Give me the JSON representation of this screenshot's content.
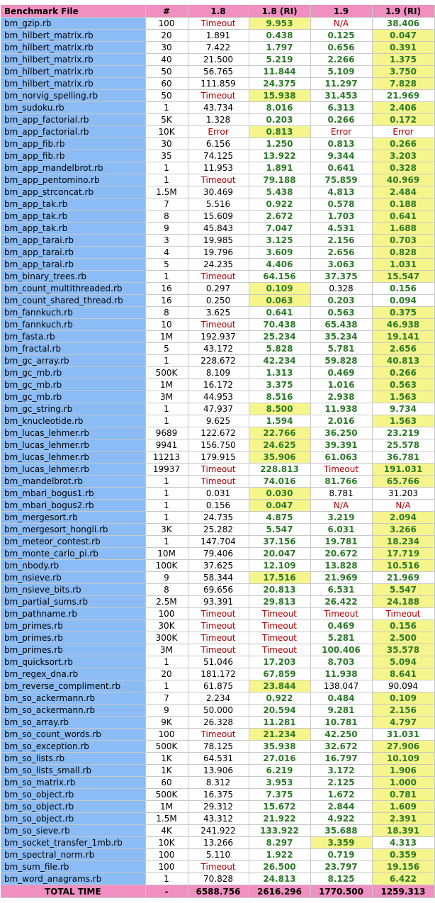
{
  "colors": {
    "header": "#f08fc0",
    "name_column": "#8cbcf5",
    "highlight": "#f5f58c",
    "timeout_red": "#b00000",
    "fast_green": "#2b7a26"
  },
  "headers": [
    "Benchmark File",
    "#",
    "1.8",
    "1.8 (RI)",
    "1.9",
    "1.9 (RI)"
  ],
  "rows": [
    {
      "name": "bm_gzip.rb",
      "iter": "100",
      "v18": "Timeout",
      "v18ri": "9.953",
      "v19": "N/A",
      "v19ri": "38.406",
      "hl": [
        1
      ],
      "style": [
        "r",
        "g",
        "r",
        "g"
      ]
    },
    {
      "name": "bm_hilbert_matrix.rb",
      "iter": "20",
      "v18": "1.891",
      "v18ri": "0.438",
      "v19": "0.125",
      "v19ri": "0.047",
      "hl": [
        3
      ],
      "style": [
        "n",
        "g",
        "g",
        "g"
      ]
    },
    {
      "name": "bm_hilbert_matrix.rb",
      "iter": "30",
      "v18": "7.422",
      "v18ri": "1.797",
      "v19": "0.656",
      "v19ri": "0.391",
      "hl": [
        3
      ],
      "style": [
        "n",
        "g",
        "g",
        "g"
      ]
    },
    {
      "name": "bm_hilbert_matrix.rb",
      "iter": "40",
      "v18": "21.500",
      "v18ri": "5.219",
      "v19": "2.266",
      "v19ri": "1.375",
      "hl": [
        3
      ],
      "style": [
        "n",
        "g",
        "g",
        "g"
      ]
    },
    {
      "name": "bm_hilbert_matrix.rb",
      "iter": "50",
      "v18": "56.765",
      "v18ri": "11.844",
      "v19": "5.109",
      "v19ri": "3.750",
      "hl": [
        3
      ],
      "style": [
        "n",
        "g",
        "g",
        "g"
      ]
    },
    {
      "name": "bm_hilbert_matrix.rb",
      "iter": "60",
      "v18": "111.859",
      "v18ri": "24.375",
      "v19": "11.297",
      "v19ri": "7.828",
      "hl": [
        3
      ],
      "style": [
        "n",
        "g",
        "g",
        "g"
      ]
    },
    {
      "name": "bm_norvig_spelling.rb",
      "iter": "50",
      "v18": "Timeout",
      "v18ri": "15.938",
      "v19": "31.453",
      "v19ri": "21.969",
      "hl": [
        1
      ],
      "style": [
        "r",
        "g",
        "g",
        "g"
      ]
    },
    {
      "name": "bm_sudoku.rb",
      "iter": "1",
      "v18": "43.734",
      "v18ri": "8.016",
      "v19": "6.313",
      "v19ri": "2.406",
      "hl": [
        3
      ],
      "style": [
        "n",
        "g",
        "g",
        "g"
      ]
    },
    {
      "name": "bm_app_factorial.rb",
      "iter": "5K",
      "v18": "1.328",
      "v18ri": "0.203",
      "v19": "0.266",
      "v19ri": "0.172",
      "hl": [
        3
      ],
      "style": [
        "n",
        "g",
        "g",
        "g"
      ]
    },
    {
      "name": "bm_app_factorial.rb",
      "iter": "10K",
      "v18": "Error",
      "v18ri": "0.813",
      "v19": "Error",
      "v19ri": "Error",
      "hl": [
        1
      ],
      "style": [
        "r",
        "g",
        "r",
        "r"
      ]
    },
    {
      "name": "bm_app_fib.rb",
      "iter": "30",
      "v18": "6.156",
      "v18ri": "1.250",
      "v19": "0.813",
      "v19ri": "0.266",
      "hl": [
        3
      ],
      "style": [
        "n",
        "g",
        "g",
        "g"
      ]
    },
    {
      "name": "bm_app_fib.rb",
      "iter": "35",
      "v18": "74.125",
      "v18ri": "13.922",
      "v19": "9.344",
      "v19ri": "3.203",
      "hl": [
        3
      ],
      "style": [
        "n",
        "g",
        "g",
        "g"
      ]
    },
    {
      "name": "bm_app_mandelbrot.rb",
      "iter": "1",
      "v18": "11.953",
      "v18ri": "1.891",
      "v19": "0.641",
      "v19ri": "0.328",
      "hl": [
        3
      ],
      "style": [
        "n",
        "g",
        "g",
        "g"
      ]
    },
    {
      "name": "bm_app_pentomino.rb",
      "iter": "1",
      "v18": "Timeout",
      "v18ri": "79.188",
      "v19": "75.859",
      "v19ri": "40.969",
      "hl": [
        3
      ],
      "style": [
        "r",
        "g",
        "g",
        "g"
      ]
    },
    {
      "name": "bm_app_strconcat.rb",
      "iter": "1.5M",
      "v18": "30.469",
      "v18ri": "5.438",
      "v19": "4.813",
      "v19ri": "2.484",
      "hl": [
        3
      ],
      "style": [
        "n",
        "g",
        "g",
        "g"
      ]
    },
    {
      "name": "bm_app_tak.rb",
      "iter": "7",
      "v18": "5.516",
      "v18ri": "0.922",
      "v19": "0.578",
      "v19ri": "0.188",
      "hl": [
        3
      ],
      "style": [
        "n",
        "g",
        "g",
        "g"
      ]
    },
    {
      "name": "bm_app_tak.rb",
      "iter": "8",
      "v18": "15.609",
      "v18ri": "2.672",
      "v19": "1.703",
      "v19ri": "0.641",
      "hl": [
        3
      ],
      "style": [
        "n",
        "g",
        "g",
        "g"
      ]
    },
    {
      "name": "bm_app_tak.rb",
      "iter": "9",
      "v18": "45.843",
      "v18ri": "7.047",
      "v19": "4.531",
      "v19ri": "1.688",
      "hl": [
        3
      ],
      "style": [
        "n",
        "g",
        "g",
        "g"
      ]
    },
    {
      "name": "bm_app_tarai.rb",
      "iter": "3",
      "v18": "19.985",
      "v18ri": "3.125",
      "v19": "2.156",
      "v19ri": "0.703",
      "hl": [
        3
      ],
      "style": [
        "n",
        "g",
        "g",
        "g"
      ]
    },
    {
      "name": "bm_app_tarai.rb",
      "iter": "4",
      "v18": "19.796",
      "v18ri": "3.609",
      "v19": "2.656",
      "v19ri": "0.828",
      "hl": [
        3
      ],
      "style": [
        "n",
        "g",
        "g",
        "g"
      ]
    },
    {
      "name": "bm_app_tarai.rb",
      "iter": "5",
      "v18": "24.235",
      "v18ri": "4.406",
      "v19": "3.063",
      "v19ri": "1.031",
      "hl": [
        3
      ],
      "style": [
        "n",
        "g",
        "g",
        "g"
      ]
    },
    {
      "name": "bm_binary_trees.rb",
      "iter": "1",
      "v18": "Timeout",
      "v18ri": "64.156",
      "v19": "37.375",
      "v19ri": "15.547",
      "hl": [
        3
      ],
      "style": [
        "r",
        "g",
        "g",
        "g"
      ]
    },
    {
      "name": "bm_count_multithreaded.rb",
      "iter": "16",
      "v18": "0.297",
      "v18ri": "0.109",
      "v19": "0.328",
      "v19ri": "0.156",
      "hl": [
        1
      ],
      "style": [
        "n",
        "g",
        "n",
        "g"
      ]
    },
    {
      "name": "bm_count_shared_thread.rb",
      "iter": "16",
      "v18": "0.250",
      "v18ri": "0.063",
      "v19": "0.203",
      "v19ri": "0.094",
      "hl": [
        1
      ],
      "style": [
        "n",
        "g",
        "g",
        "g"
      ]
    },
    {
      "name": "bm_fannkuch.rb",
      "iter": "8",
      "v18": "3.625",
      "v18ri": "0.641",
      "v19": "0.563",
      "v19ri": "0.375",
      "hl": [
        3
      ],
      "style": [
        "n",
        "g",
        "g",
        "g"
      ]
    },
    {
      "name": "bm_fannkuch.rb",
      "iter": "10",
      "v18": "Timeout",
      "v18ri": "70.438",
      "v19": "65.438",
      "v19ri": "46.938",
      "hl": [
        3
      ],
      "style": [
        "r",
        "g",
        "g",
        "g"
      ]
    },
    {
      "name": "bm_fasta.rb",
      "iter": "1M",
      "v18": "192.937",
      "v18ri": "25.234",
      "v19": "35.234",
      "v19ri": "19.141",
      "hl": [
        3
      ],
      "style": [
        "n",
        "g",
        "g",
        "g"
      ]
    },
    {
      "name": "bm_fractal.rb",
      "iter": "5",
      "v18": "43.172",
      "v18ri": "5.828",
      "v19": "5.781",
      "v19ri": "2.656",
      "hl": [
        3
      ],
      "style": [
        "n",
        "g",
        "g",
        "g"
      ]
    },
    {
      "name": "bm_gc_array.rb",
      "iter": "1",
      "v18": "228.672",
      "v18ri": "42.234",
      "v19": "59.828",
      "v19ri": "40.813",
      "hl": [
        3
      ],
      "style": [
        "n",
        "g",
        "g",
        "g"
      ]
    },
    {
      "name": "bm_gc_mb.rb",
      "iter": "500K",
      "v18": "8.109",
      "v18ri": "1.313",
      "v19": "0.469",
      "v19ri": "0.266",
      "hl": [
        3
      ],
      "style": [
        "n",
        "g",
        "g",
        "g"
      ]
    },
    {
      "name": "bm_gc_mb.rb",
      "iter": "1M",
      "v18": "16.172",
      "v18ri": "3.375",
      "v19": "1.016",
      "v19ri": "0.563",
      "hl": [
        3
      ],
      "style": [
        "n",
        "g",
        "g",
        "g"
      ]
    },
    {
      "name": "bm_gc_mb.rb",
      "iter": "3M",
      "v18": "44.953",
      "v18ri": "8.516",
      "v19": "2.938",
      "v19ri": "1.563",
      "hl": [
        3
      ],
      "style": [
        "n",
        "g",
        "g",
        "g"
      ]
    },
    {
      "name": "bm_gc_string.rb",
      "iter": "1",
      "v18": "47.937",
      "v18ri": "8.500",
      "v19": "11.938",
      "v19ri": "9.734",
      "hl": [
        1
      ],
      "style": [
        "n",
        "g",
        "g",
        "g"
      ]
    },
    {
      "name": "bm_knucleotide.rb",
      "iter": "1",
      "v18": "9.625",
      "v18ri": "1.594",
      "v19": "2.016",
      "v19ri": "1.563",
      "hl": [
        3
      ],
      "style": [
        "n",
        "g",
        "g",
        "g"
      ]
    },
    {
      "name": "bm_lucas_lehmer.rb",
      "iter": "9689",
      "v18": "122.672",
      "v18ri": "22.766",
      "v19": "36.250",
      "v19ri": "23.219",
      "hl": [
        1
      ],
      "style": [
        "n",
        "g",
        "g",
        "g"
      ]
    },
    {
      "name": "bm_lucas_lehmer.rb",
      "iter": "9941",
      "v18": "156.750",
      "v18ri": "24.625",
      "v19": "39.391",
      "v19ri": "25.578",
      "hl": [
        1
      ],
      "style": [
        "n",
        "g",
        "g",
        "g"
      ]
    },
    {
      "name": "bm_lucas_lehmer.rb",
      "iter": "11213",
      "v18": "179.915",
      "v18ri": "35.906",
      "v19": "61.063",
      "v19ri": "36.781",
      "hl": [
        1
      ],
      "style": [
        "n",
        "g",
        "g",
        "g"
      ]
    },
    {
      "name": "bm_lucas_lehmer.rb",
      "iter": "19937",
      "v18": "Timeout",
      "v18ri": "228.813",
      "v19": "Timeout",
      "v19ri": "191.031",
      "hl": [
        3
      ],
      "style": [
        "r",
        "g",
        "r",
        "g"
      ]
    },
    {
      "name": "bm_mandelbrot.rb",
      "iter": "1",
      "v18": "Timeout",
      "v18ri": "74.016",
      "v19": "81.766",
      "v19ri": "65.766",
      "hl": [
        3
      ],
      "style": [
        "r",
        "g",
        "g",
        "g"
      ]
    },
    {
      "name": "bm_mbari_bogus1.rb",
      "iter": "1",
      "v18": "0.031",
      "v18ri": "0.030",
      "v19": "8.781",
      "v19ri": "31.203",
      "hl": [
        1
      ],
      "style": [
        "n",
        "g",
        "n",
        "n"
      ]
    },
    {
      "name": "bm_mbari_bogus2.rb",
      "iter": "1",
      "v18": "0.156",
      "v18ri": "0.047",
      "v19": "N/A",
      "v19ri": "N/A",
      "hl": [
        1
      ],
      "style": [
        "n",
        "g",
        "r",
        "r"
      ]
    },
    {
      "name": "bm_mergesort.rb",
      "iter": "1",
      "v18": "24.735",
      "v18ri": "4.875",
      "v19": "3.219",
      "v19ri": "2.094",
      "hl": [
        3
      ],
      "style": [
        "n",
        "g",
        "g",
        "g"
      ]
    },
    {
      "name": "bm_mergesort_hongli.rb",
      "iter": "3K",
      "v18": "25.282",
      "v18ri": "5.547",
      "v19": "6.031",
      "v19ri": "3.266",
      "hl": [
        3
      ],
      "style": [
        "n",
        "g",
        "g",
        "g"
      ]
    },
    {
      "name": "bm_meteor_contest.rb",
      "iter": "1",
      "v18": "147.704",
      "v18ri": "37.156",
      "v19": "19.781",
      "v19ri": "18.234",
      "hl": [
        3
      ],
      "style": [
        "n",
        "g",
        "g",
        "g"
      ]
    },
    {
      "name": "bm_monte_carlo_pi.rb",
      "iter": "10M",
      "v18": "79.406",
      "v18ri": "20.047",
      "v19": "20.672",
      "v19ri": "17.719",
      "hl": [
        3
      ],
      "style": [
        "n",
        "g",
        "g",
        "g"
      ]
    },
    {
      "name": "bm_nbody.rb",
      "iter": "100K",
      "v18": "37.625",
      "v18ri": "12.109",
      "v19": "13.828",
      "v19ri": "10.516",
      "hl": [
        3
      ],
      "style": [
        "n",
        "g",
        "g",
        "g"
      ]
    },
    {
      "name": "bm_nsieve.rb",
      "iter": "9",
      "v18": "58.344",
      "v18ri": "17.516",
      "v19": "21.969",
      "v19ri": "21.969",
      "hl": [
        1
      ],
      "style": [
        "n",
        "g",
        "g",
        "g"
      ]
    },
    {
      "name": "bm_nsieve_bits.rb",
      "iter": "8",
      "v18": "69.656",
      "v18ri": "20.813",
      "v19": "6.531",
      "v19ri": "5.547",
      "hl": [
        3
      ],
      "style": [
        "n",
        "g",
        "g",
        "g"
      ]
    },
    {
      "name": "bm_partial_sums.rb",
      "iter": "2.5M",
      "v18": "93.391",
      "v18ri": "29.813",
      "v19": "26.422",
      "v19ri": "24.188",
      "hl": [
        3
      ],
      "style": [
        "n",
        "g",
        "g",
        "g"
      ]
    },
    {
      "name": "bm_pathname.rb",
      "iter": "100",
      "v18": "Timeout",
      "v18ri": "Timeout",
      "v19": "Timeout",
      "v19ri": "Timeout",
      "hl": [],
      "style": [
        "r",
        "r",
        "r",
        "r"
      ]
    },
    {
      "name": "bm_primes.rb",
      "iter": "30K",
      "v18": "Timeout",
      "v18ri": "Timeout",
      "v19": "0.469",
      "v19ri": "0.156",
      "hl": [
        3
      ],
      "style": [
        "r",
        "r",
        "g",
        "g"
      ]
    },
    {
      "name": "bm_primes.rb",
      "iter": "300K",
      "v18": "Timeout",
      "v18ri": "Timeout",
      "v19": "5.281",
      "v19ri": "2.500",
      "hl": [
        3
      ],
      "style": [
        "r",
        "r",
        "g",
        "g"
      ]
    },
    {
      "name": "bm_primes.rb",
      "iter": "3M",
      "v18": "Timeout",
      "v18ri": "Timeout",
      "v19": "100.406",
      "v19ri": "35.578",
      "hl": [
        3
      ],
      "style": [
        "r",
        "r",
        "g",
        "g"
      ]
    },
    {
      "name": "bm_quicksort.rb",
      "iter": "1",
      "v18": "51.046",
      "v18ri": "17.203",
      "v19": "8.703",
      "v19ri": "5.094",
      "hl": [
        3
      ],
      "style": [
        "n",
        "g",
        "g",
        "g"
      ]
    },
    {
      "name": "bm_regex_dna.rb",
      "iter": "20",
      "v18": "181.172",
      "v18ri": "67.859",
      "v19": "11.938",
      "v19ri": "8.641",
      "hl": [
        3
      ],
      "style": [
        "n",
        "g",
        "g",
        "g"
      ]
    },
    {
      "name": "bm_reverse_compliment.rb",
      "iter": "1",
      "v18": "61.875",
      "v18ri": "23.844",
      "v19": "138.047",
      "v19ri": "90.094",
      "hl": [
        1
      ],
      "style": [
        "n",
        "g",
        "n",
        "n"
      ]
    },
    {
      "name": "bm_so_ackermann.rb",
      "iter": "7",
      "v18": "2.234",
      "v18ri": "0.922",
      "v19": "0.484",
      "v19ri": "0.109",
      "hl": [
        3
      ],
      "style": [
        "n",
        "g",
        "g",
        "g"
      ]
    },
    {
      "name": "bm_so_ackermann.rb",
      "iter": "9",
      "v18": "50.000",
      "v18ri": "20.594",
      "v19": "9.281",
      "v19ri": "2.156",
      "hl": [
        3
      ],
      "style": [
        "n",
        "g",
        "g",
        "g"
      ]
    },
    {
      "name": "bm_so_array.rb",
      "iter": "9K",
      "v18": "26.328",
      "v18ri": "11.281",
      "v19": "10.781",
      "v19ri": "4.797",
      "hl": [
        3
      ],
      "style": [
        "n",
        "g",
        "g",
        "g"
      ]
    },
    {
      "name": "bm_so_count_words.rb",
      "iter": "100",
      "v18": "Timeout",
      "v18ri": "21.234",
      "v19": "42.250",
      "v19ri": "31.031",
      "hl": [
        1
      ],
      "style": [
        "r",
        "g",
        "g",
        "g"
      ]
    },
    {
      "name": "bm_so_exception.rb",
      "iter": "500K",
      "v18": "78.125",
      "v18ri": "35.938",
      "v19": "32.672",
      "v19ri": "27.906",
      "hl": [
        3
      ],
      "style": [
        "n",
        "g",
        "g",
        "g"
      ]
    },
    {
      "name": "bm_so_lists.rb",
      "iter": "1K",
      "v18": "64.531",
      "v18ri": "27.016",
      "v19": "16.797",
      "v19ri": "10.109",
      "hl": [
        3
      ],
      "style": [
        "n",
        "g",
        "g",
        "g"
      ]
    },
    {
      "name": "bm_so_lists_small.rb",
      "iter": "1K",
      "v18": "13.906",
      "v18ri": "6.219",
      "v19": "3.172",
      "v19ri": "1.906",
      "hl": [
        3
      ],
      "style": [
        "n",
        "g",
        "g",
        "g"
      ]
    },
    {
      "name": "bm_so_matrix.rb",
      "iter": "60",
      "v18": "8.312",
      "v18ri": "3.953",
      "v19": "2.125",
      "v19ri": "1.000",
      "hl": [
        3
      ],
      "style": [
        "n",
        "g",
        "g",
        "g"
      ]
    },
    {
      "name": "bm_so_object.rb",
      "iter": "500K",
      "v18": "16.375",
      "v18ri": "7.375",
      "v19": "1.672",
      "v19ri": "0.781",
      "hl": [
        3
      ],
      "style": [
        "n",
        "g",
        "g",
        "g"
      ]
    },
    {
      "name": "bm_so_object.rb",
      "iter": "1M",
      "v18": "29.312",
      "v18ri": "15.672",
      "v19": "2.844",
      "v19ri": "1.609",
      "hl": [
        3
      ],
      "style": [
        "n",
        "g",
        "g",
        "g"
      ]
    },
    {
      "name": "bm_so_object.rb",
      "iter": "1.5M",
      "v18": "43.312",
      "v18ri": "21.922",
      "v19": "4.922",
      "v19ri": "2.391",
      "hl": [
        3
      ],
      "style": [
        "n",
        "g",
        "g",
        "g"
      ]
    },
    {
      "name": "bm_so_sieve.rb",
      "iter": "4K",
      "v18": "241.922",
      "v18ri": "133.922",
      "v19": "35.688",
      "v19ri": "18.391",
      "hl": [
        3
      ],
      "style": [
        "n",
        "g",
        "g",
        "g"
      ]
    },
    {
      "name": "bm_socket_transfer_1mb.rb",
      "iter": "10K",
      "v18": "13.266",
      "v18ri": "8.297",
      "v19": "3.359",
      "v19ri": "4.313",
      "hl": [
        2
      ],
      "style": [
        "n",
        "g",
        "g",
        "g"
      ]
    },
    {
      "name": "bm_spectral_norm.rb",
      "iter": "100",
      "v18": "5.110",
      "v18ri": "1.922",
      "v19": "0.719",
      "v19ri": "0.359",
      "hl": [
        3
      ],
      "style": [
        "n",
        "g",
        "g",
        "g"
      ]
    },
    {
      "name": "bm_sum_file.rb",
      "iter": "100",
      "v18": "Timeout",
      "v18ri": "26.500",
      "v19": "23.797",
      "v19ri": "19.156",
      "hl": [
        3
      ],
      "style": [
        "r",
        "g",
        "g",
        "g"
      ]
    },
    {
      "name": "bm_word_anagrams.rb",
      "iter": "1",
      "v18": "70.828",
      "v18ri": "24.813",
      "v19": "8.125",
      "v19ri": "6.422",
      "hl": [
        3
      ],
      "style": [
        "n",
        "g",
        "g",
        "g"
      ]
    }
  ],
  "total": {
    "label": "TOTAL TIME",
    "iter": "-",
    "v18": "6588.756",
    "v18ri": "2616.296",
    "v19": "1770.500",
    "v19ri": "1259.313"
  }
}
